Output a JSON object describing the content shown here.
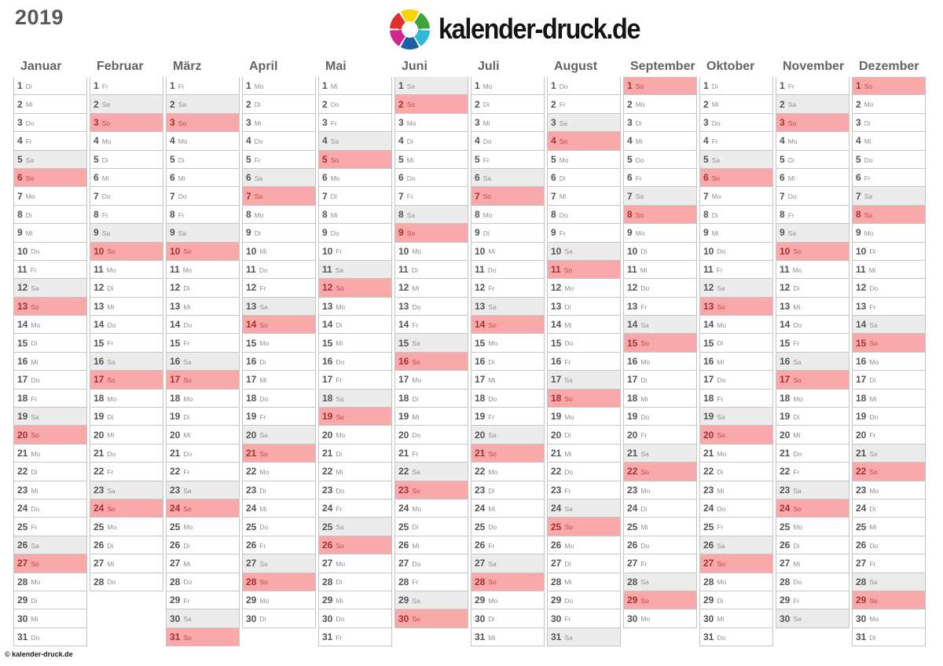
{
  "title": "2019",
  "logo": {
    "text": "kalender-druck.de",
    "segment_colors": [
      "#e23030",
      "#fdd400",
      "#3ea43a",
      "#2fb8d9",
      "#1d5ea8",
      "#d2268c"
    ]
  },
  "footer": {
    "copyright": "© kalender-druck.de"
  },
  "colors": {
    "saturday_bg": "#ececec",
    "sunday_bg": "#f9a9a9",
    "sunday_number": "#a82f2f",
    "sunday_weekday": "#c34646",
    "cell_border": "#c5c5c5",
    "number_text": "#555555",
    "weekday_text": "#8f8f8f"
  },
  "weekday_abbreviations": [
    "Mo",
    "Di",
    "Mi",
    "Do",
    "Fr",
    "Sa",
    "So"
  ],
  "months": [
    {
      "name": "Januar",
      "days": [
        "Di",
        "Mi",
        "Do",
        "Fr",
        "Sa",
        "So",
        "Mo",
        "Di",
        "Mi",
        "Do",
        "Fr",
        "Sa",
        "So",
        "Mo",
        "Di",
        "Mi",
        "Do",
        "Fr",
        "Sa",
        "So",
        "Mo",
        "Di",
        "Mi",
        "Do",
        "Fr",
        "Sa",
        "So",
        "Mo",
        "Di",
        "Mi",
        "Do"
      ]
    },
    {
      "name": "Februar",
      "days": [
        "Fr",
        "Sa",
        "So",
        "Mo",
        "Di",
        "Mi",
        "Do",
        "Fr",
        "Sa",
        "So",
        "Mo",
        "Di",
        "Mi",
        "Do",
        "Fr",
        "Sa",
        "So",
        "Mo",
        "Di",
        "Mi",
        "Do",
        "Fr",
        "Sa",
        "So",
        "Mo",
        "Di",
        "Mi",
        "Do"
      ]
    },
    {
      "name": "März",
      "days": [
        "Fr",
        "Sa",
        "So",
        "Mo",
        "Di",
        "Mi",
        "Do",
        "Fr",
        "Sa",
        "So",
        "Mo",
        "Di",
        "Mi",
        "Do",
        "Fr",
        "Sa",
        "So",
        "Mo",
        "Di",
        "Mi",
        "Do",
        "Fr",
        "Sa",
        "So",
        "Mo",
        "Di",
        "Mi",
        "Do",
        "Fr",
        "Sa",
        "So"
      ]
    },
    {
      "name": "April",
      "days": [
        "Mo",
        "Di",
        "Mi",
        "Do",
        "Fr",
        "Sa",
        "So",
        "Mo",
        "Di",
        "Mi",
        "Do",
        "Fr",
        "Sa",
        "So",
        "Mo",
        "Di",
        "Mi",
        "Do",
        "Fr",
        "Sa",
        "So",
        "Mo",
        "Di",
        "Mi",
        "Do",
        "Fr",
        "Sa",
        "So",
        "Mo",
        "Di"
      ]
    },
    {
      "name": "Mai",
      "days": [
        "Mi",
        "Do",
        "Fr",
        "Sa",
        "So",
        "Mo",
        "Di",
        "Mi",
        "Do",
        "Fr",
        "Sa",
        "So",
        "Mo",
        "Di",
        "Mi",
        "Do",
        "Fr",
        "Sa",
        "So",
        "Mo",
        "Di",
        "Mi",
        "Do",
        "Fr",
        "Sa",
        "So",
        "Mo",
        "Di",
        "Mi",
        "Do",
        "Fr"
      ]
    },
    {
      "name": "Juni",
      "days": [
        "Sa",
        "So",
        "Mo",
        "Di",
        "Mi",
        "Do",
        "Fr",
        "Sa",
        "So",
        "Mo",
        "Di",
        "Mi",
        "Do",
        "Fr",
        "Sa",
        "So",
        "Mo",
        "Di",
        "Mi",
        "Do",
        "Fr",
        "Sa",
        "So",
        "Mo",
        "Di",
        "Mi",
        "Do",
        "Fr",
        "Sa",
        "So"
      ]
    },
    {
      "name": "Juli",
      "days": [
        "Mo",
        "Di",
        "Mi",
        "Do",
        "Fr",
        "Sa",
        "So",
        "Mo",
        "Di",
        "Mi",
        "Do",
        "Fr",
        "Sa",
        "So",
        "Mo",
        "Di",
        "Mi",
        "Do",
        "Fr",
        "Sa",
        "So",
        "Mo",
        "Di",
        "Mi",
        "Do",
        "Fr",
        "Sa",
        "So",
        "Mo",
        "Di",
        "Mi"
      ]
    },
    {
      "name": "August",
      "days": [
        "Do",
        "Fr",
        "Sa",
        "So",
        "Mo",
        "Di",
        "Mi",
        "Do",
        "Fr",
        "Sa",
        "So",
        "Mo",
        "Di",
        "Mi",
        "Do",
        "Fr",
        "Sa",
        "So",
        "Mo",
        "Di",
        "Mi",
        "Do",
        "Fr",
        "Sa",
        "So",
        "Mo",
        "Di",
        "Mi",
        "Do",
        "Fr",
        "Sa"
      ]
    },
    {
      "name": "September",
      "days": [
        "So",
        "Mo",
        "Di",
        "Mi",
        "Do",
        "Fr",
        "Sa",
        "So",
        "Mo",
        "Di",
        "Mi",
        "Do",
        "Fr",
        "Sa",
        "So",
        "Mo",
        "Di",
        "Mi",
        "Do",
        "Fr",
        "Sa",
        "So",
        "Mo",
        "Di",
        "Mi",
        "Do",
        "Fr",
        "Sa",
        "So",
        "Mo"
      ]
    },
    {
      "name": "Oktober",
      "days": [
        "Di",
        "Mi",
        "Do",
        "Fr",
        "Sa",
        "So",
        "Mo",
        "Di",
        "Mi",
        "Do",
        "Fr",
        "Sa",
        "So",
        "Mo",
        "Di",
        "Mi",
        "Do",
        "Fr",
        "Sa",
        "So",
        "Mo",
        "Di",
        "Mi",
        "Do",
        "Fr",
        "Sa",
        "So",
        "Mo",
        "Di",
        "Mi",
        "Do"
      ]
    },
    {
      "name": "November",
      "days": [
        "Fr",
        "Sa",
        "So",
        "Mo",
        "Di",
        "Mi",
        "Do",
        "Fr",
        "Sa",
        "So",
        "Mo",
        "Di",
        "Mi",
        "Do",
        "Fr",
        "Sa",
        "So",
        "Mo",
        "Di",
        "Mi",
        "Do",
        "Fr",
        "Sa",
        "So",
        "Mo",
        "Di",
        "Mi",
        "Do",
        "Fr",
        "Sa"
      ]
    },
    {
      "name": "Dezember",
      "days": [
        "So",
        "Mo",
        "Di",
        "Mi",
        "Do",
        "Fr",
        "Sa",
        "So",
        "Mo",
        "Di",
        "Mi",
        "Do",
        "Fr",
        "Sa",
        "So",
        "Mo",
        "Di",
        "Mi",
        "Do",
        "Fr",
        "Sa",
        "So",
        "Mo",
        "Di",
        "Mi",
        "Do",
        "Fr",
        "Sa",
        "So",
        "Mo",
        "Di"
      ]
    }
  ]
}
